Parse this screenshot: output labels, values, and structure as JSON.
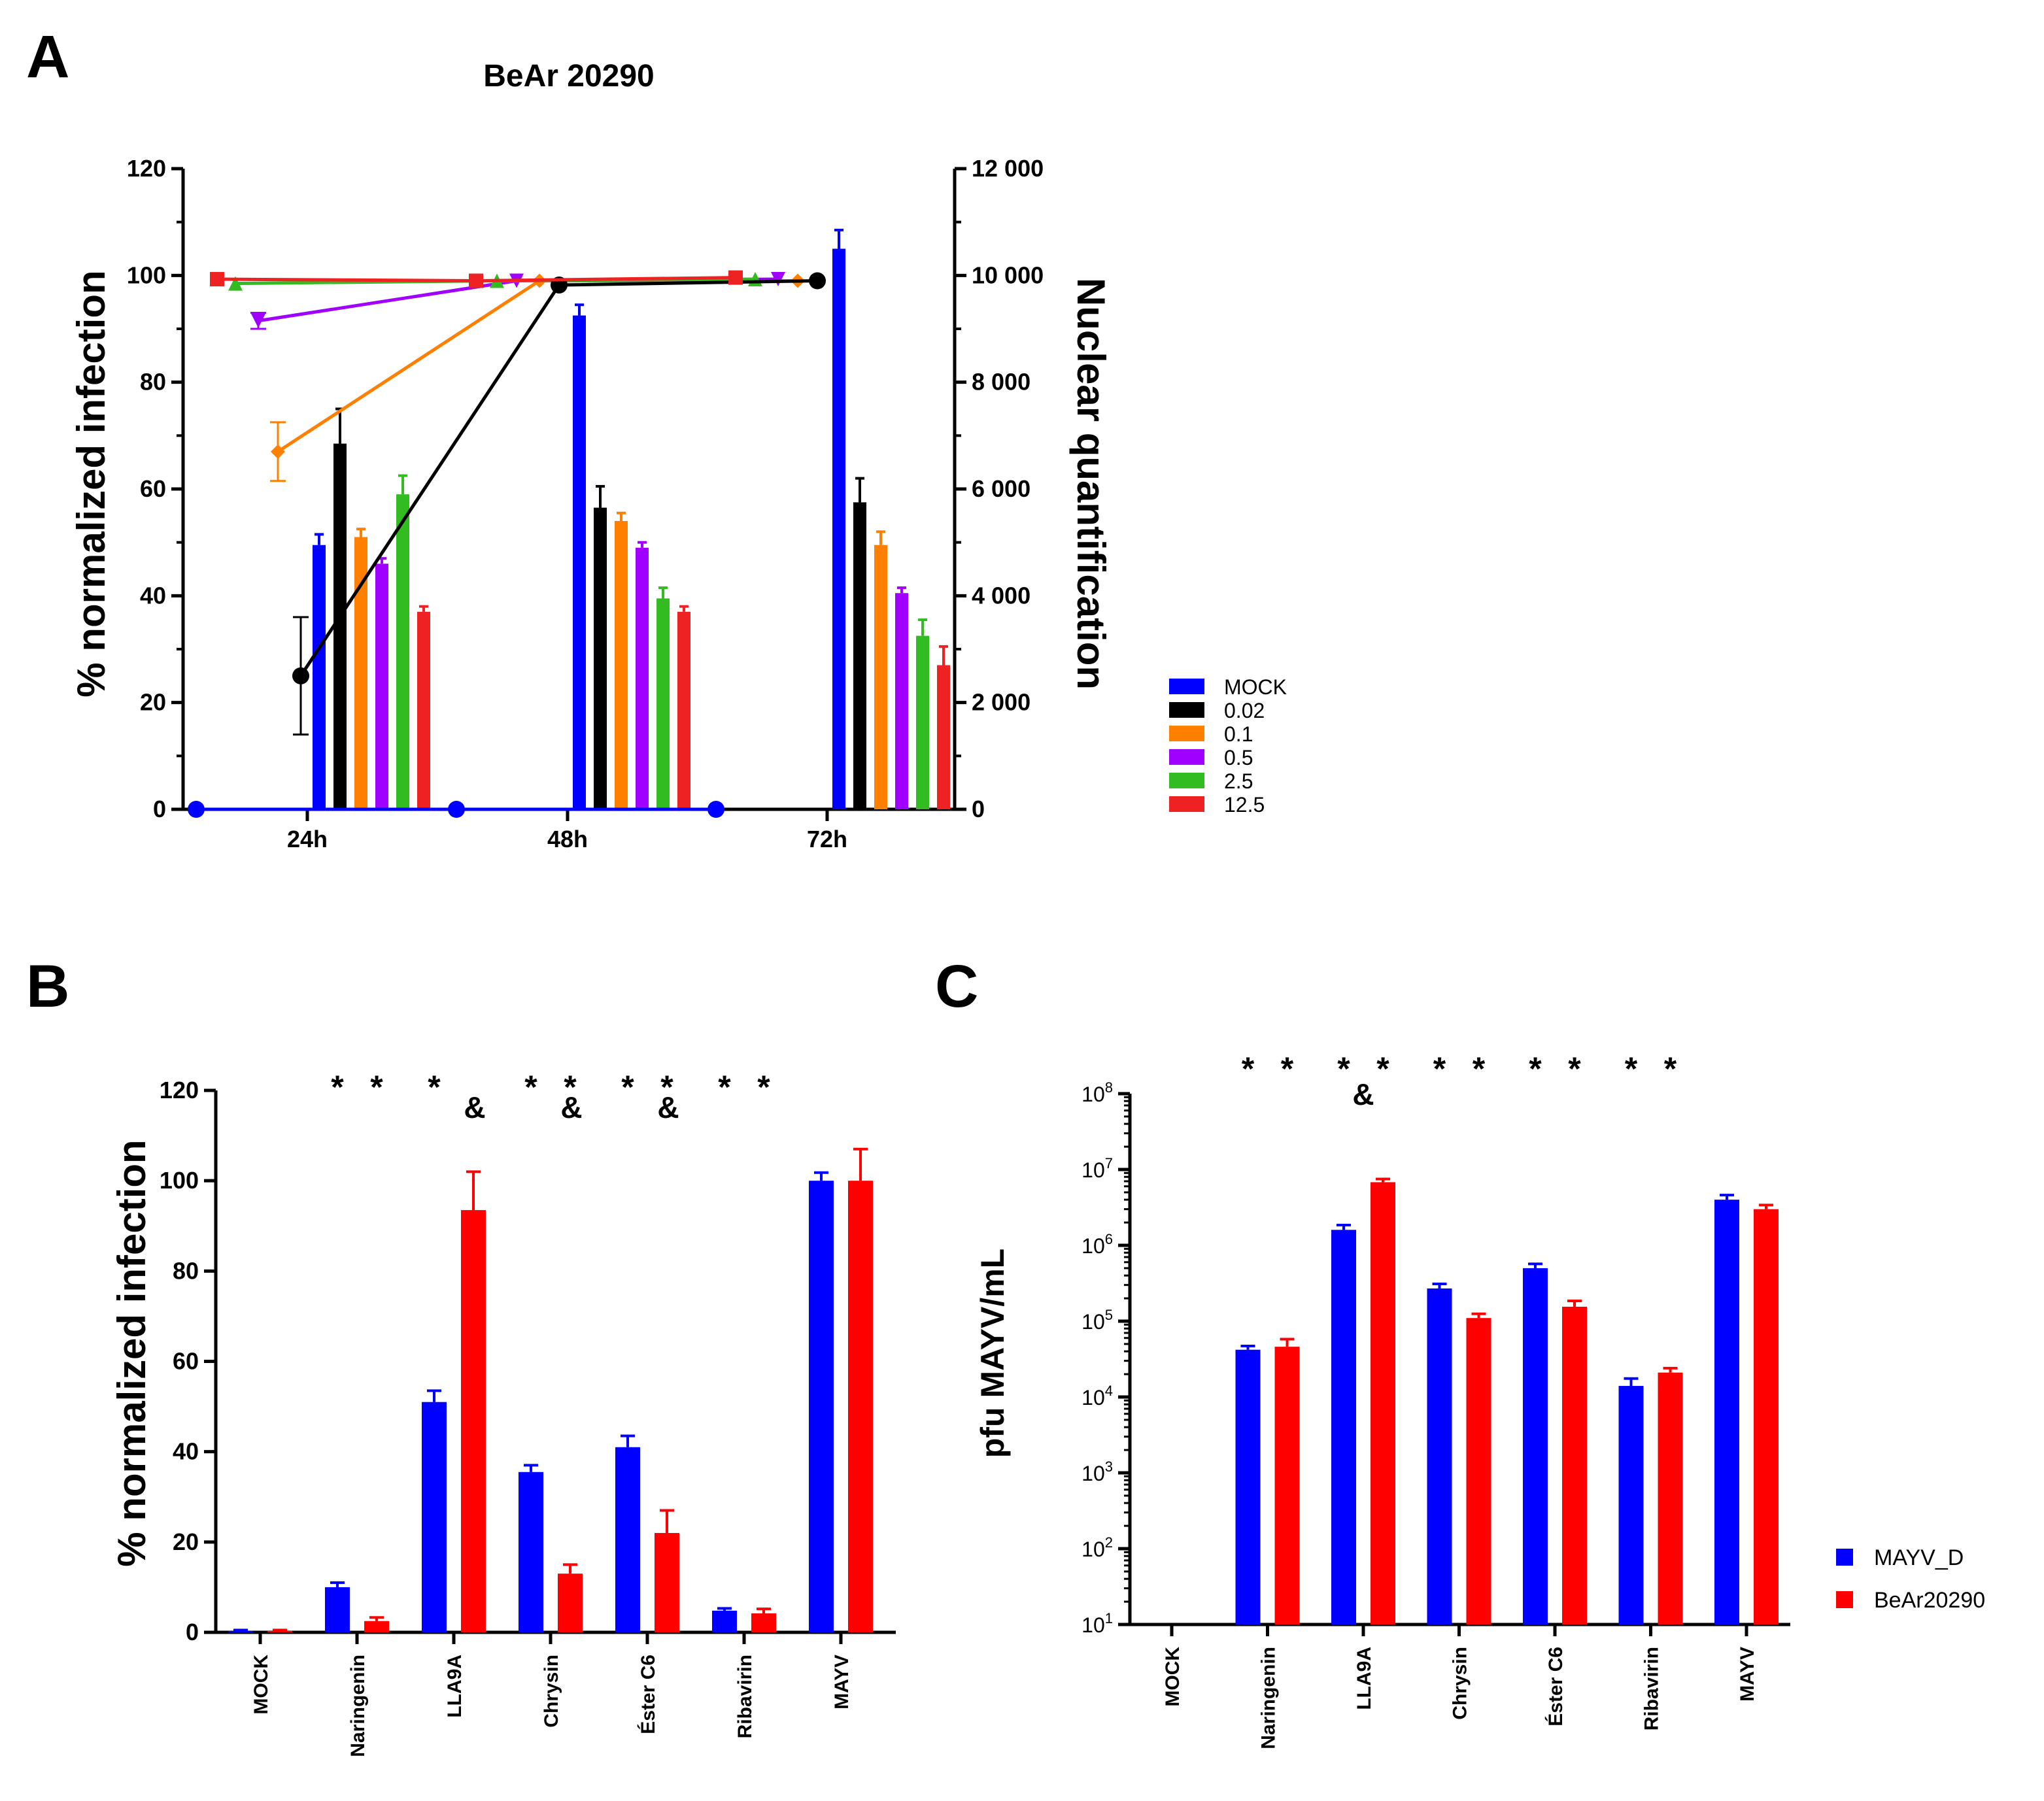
{
  "panels": {
    "A": {
      "letter": "A",
      "title": "BeAr 20290"
    },
    "B": {
      "letter": "B"
    },
    "C": {
      "letter": "C"
    }
  },
  "chart_data": [
    {
      "id": "A",
      "type": "bar+line",
      "title": "BeAr 20290",
      "ylabel": "% normalized infection",
      "y2label": "Nuclear quantification",
      "ylim": [
        0,
        120
      ],
      "yticks": [
        0,
        20,
        40,
        60,
        80,
        100,
        120
      ],
      "y2lim": [
        0,
        12000
      ],
      "y2ticks": [
        0,
        2000,
        4000,
        6000,
        8000,
        10000,
        12000
      ],
      "y2ticklabels": [
        "0",
        "2 000",
        "4 000",
        "6 000",
        "8 000",
        "10 000",
        "12 000"
      ],
      "categories": [
        "24h",
        "48h",
        "72h"
      ],
      "legend_position": "right",
      "series": [
        {
          "name": "MOCK",
          "color": "#0000ff",
          "bar_values": [
            4950,
            9250,
            10500
          ],
          "bar_errors": [
            200,
            200,
            350
          ],
          "line_values": [
            0,
            0,
            0
          ],
          "line_errors": [
            0,
            0,
            0
          ],
          "marker": "circle"
        },
        {
          "name": "0.02",
          "color": "#000000",
          "bar_values": [
            6850,
            5650,
            5750
          ],
          "bar_errors": [
            650,
            400,
            450
          ],
          "line_values": [
            25,
            98.2,
            99
          ],
          "line_errors": [
            11,
            0.5,
            0.5
          ],
          "marker": "circle"
        },
        {
          "name": "0.1",
          "color": "#ff8000",
          "bar_values": [
            5100,
            5400,
            4950
          ],
          "bar_errors": [
            150,
            150,
            250
          ],
          "line_values": [
            67,
            99,
            99
          ],
          "line_errors": [
            5.5,
            0.3,
            0.3
          ],
          "marker": "diamond"
        },
        {
          "name": "0.5",
          "color": "#a000ff",
          "bar_values": [
            4600,
            4900,
            4050
          ],
          "bar_errors": [
            100,
            100,
            100
          ],
          "line_values": [
            91.5,
            99,
            99.3
          ],
          "line_errors": [
            1.5,
            0.3,
            0.3
          ],
          "marker": "triangle-down"
        },
        {
          "name": "2.5",
          "color": "#33bb22",
          "bar_values": [
            5900,
            3950,
            3250
          ],
          "bar_errors": [
            350,
            200,
            300
          ],
          "line_values": [
            98.5,
            99,
            99.3
          ],
          "line_errors": [
            0.4,
            0.3,
            0.3
          ],
          "marker": "triangle-up"
        },
        {
          "name": "12.5",
          "color": "#ee2222",
          "bar_values": [
            3700,
            3700,
            2700
          ],
          "bar_errors": [
            100,
            100,
            350
          ],
          "line_values": [
            99.3,
            99,
            99.6
          ],
          "line_errors": [
            0.3,
            0.3,
            0.3
          ],
          "marker": "square"
        }
      ]
    },
    {
      "id": "B",
      "type": "bar",
      "ylabel": "% normalized infection",
      "ylim": [
        0,
        120
      ],
      "yticks": [
        0,
        20,
        40,
        60,
        80,
        100,
        120
      ],
      "categories": [
        "MOCK",
        "Naringenin",
        "LLA9A",
        "Chrysin",
        "Éster C6",
        "Ribavirin",
        "MAYV"
      ],
      "series": [
        {
          "name": "MAYV_D",
          "color": "#0000ff",
          "values": [
            0.3,
            10,
            51,
            35.5,
            41,
            4.8,
            100
          ],
          "errors": [
            0.2,
            1,
            2.5,
            1.5,
            2.5,
            0.5,
            1.8
          ]
        },
        {
          "name": "BeAr20290",
          "color": "#ff0000",
          "values": [
            0.3,
            2.5,
            93.5,
            13,
            22,
            4.2,
            100
          ],
          "errors": [
            0.2,
            0.8,
            8.5,
            2,
            5,
            1,
            7
          ]
        }
      ],
      "annotations": [
        {
          "category": "Naringenin",
          "series": "MAYV_D",
          "text": "*"
        },
        {
          "category": "Naringenin",
          "series": "BeAr20290",
          "text": "*"
        },
        {
          "category": "LLA9A",
          "series": "MAYV_D",
          "text": "*"
        },
        {
          "category": "LLA9A",
          "series": "BeAr20290",
          "text": "&"
        },
        {
          "category": "Chrysin",
          "series": "MAYV_D",
          "text": "*"
        },
        {
          "category": "Chrysin",
          "series": "BeAr20290",
          "text": "*"
        },
        {
          "category": "Chrysin",
          "series": "BeAr20290",
          "text": "&"
        },
        {
          "category": "Éster C6",
          "series": "MAYV_D",
          "text": "*"
        },
        {
          "category": "Éster C6",
          "series": "BeAr20290",
          "text": "*"
        },
        {
          "category": "Éster C6",
          "series": "BeAr20290",
          "text": "&"
        },
        {
          "category": "Ribavirin",
          "series": "MAYV_D",
          "text": "*"
        },
        {
          "category": "Ribavirin",
          "series": "BeAr20290",
          "text": "*"
        }
      ]
    },
    {
      "id": "C",
      "type": "bar",
      "ylabel": "pfu MAYV/mL",
      "yscale": "log",
      "ylim": [
        10,
        100000000
      ],
      "yticks_exponents": [
        1,
        2,
        3,
        4,
        5,
        6,
        7,
        8
      ],
      "ytick_base": "10",
      "categories": [
        "MOCK",
        "Naringenin",
        "LLA9A",
        "Chrysin",
        "Éster C6",
        "Ribavirin",
        "MAYV"
      ],
      "legend_position": "right",
      "series": [
        {
          "name": "MAYV_D",
          "color": "#0000ff",
          "values": [
            0,
            42000,
            1600000,
            270000,
            500000,
            14000,
            4000000
          ],
          "errors": [
            0,
            5000,
            250000,
            40000,
            70000,
            3500,
            600000
          ]
        },
        {
          "name": "BeAr20290",
          "color": "#ff0000",
          "values": [
            0,
            46000,
            6800000,
            110000,
            155000,
            21000,
            3000000
          ],
          "errors": [
            0,
            12000,
            700000,
            15000,
            30000,
            3000,
            400000
          ]
        }
      ],
      "annotations": [
        {
          "category": "Naringenin",
          "series": "MAYV_D",
          "text": "*"
        },
        {
          "category": "Naringenin",
          "series": "BeAr20290",
          "text": "*"
        },
        {
          "category": "LLA9A",
          "series": "MAYV_D",
          "text": "*"
        },
        {
          "category": "LLA9A",
          "series": "BeAr20290",
          "text": "*"
        },
        {
          "category": "LLA9A",
          "series": "MAYV_D",
          "text": "&"
        },
        {
          "category": "Chrysin",
          "series": "MAYV_D",
          "text": "*"
        },
        {
          "category": "Chrysin",
          "series": "BeAr20290",
          "text": "*"
        },
        {
          "category": "Éster C6",
          "series": "MAYV_D",
          "text": "*"
        },
        {
          "category": "Éster C6",
          "series": "BeAr20290",
          "text": "*"
        },
        {
          "category": "Ribavirin",
          "series": "MAYV_D",
          "text": "*"
        },
        {
          "category": "Ribavirin",
          "series": "BeAr20290",
          "text": "*"
        }
      ]
    }
  ]
}
